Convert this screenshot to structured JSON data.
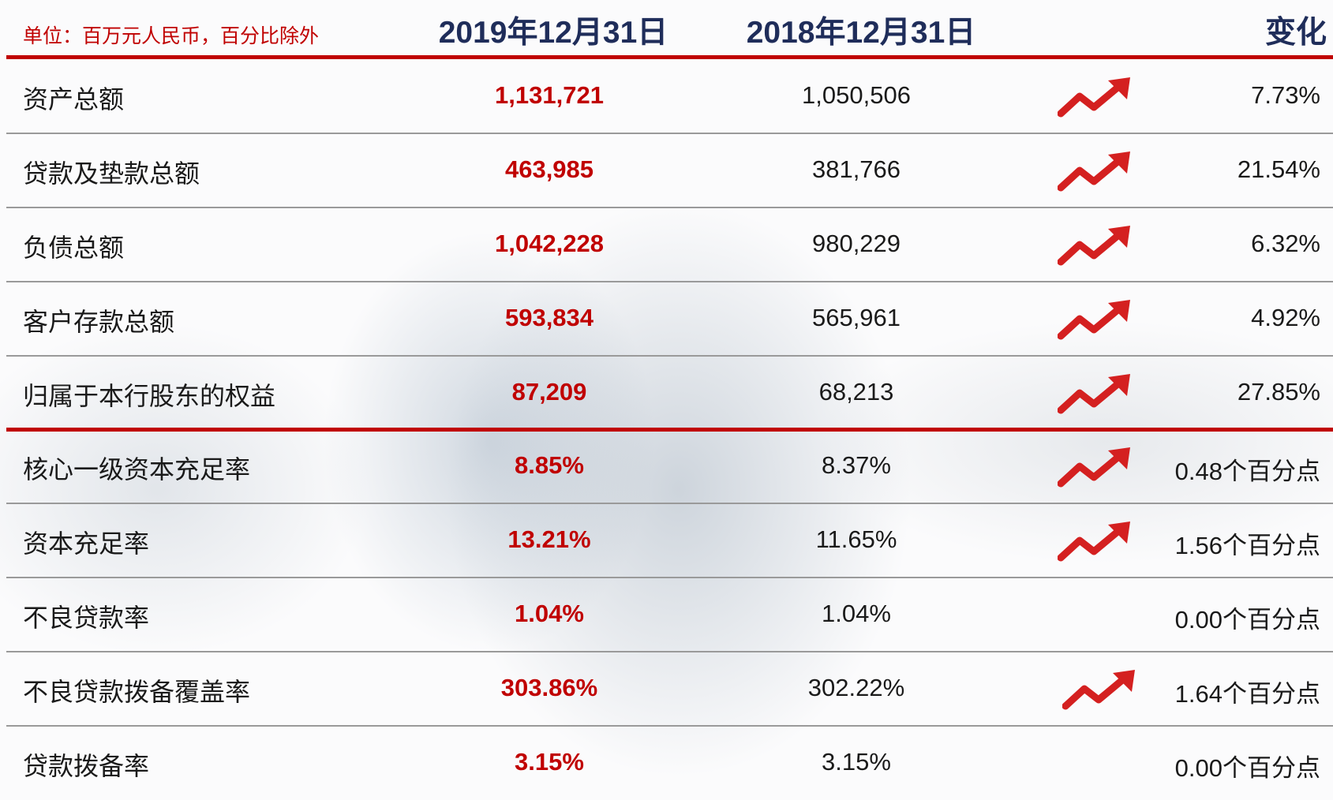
{
  "header": {
    "unit": "单位：百万元人民币，百分比除外",
    "columns": [
      "2019年12月31日",
      "2018年12月31日",
      "变化"
    ]
  },
  "table": {
    "rows": [
      {
        "label": "资产总额",
        "v2019": "1,131,721",
        "v2018": "1,050,506",
        "change": "7.73%",
        "arrow": true
      },
      {
        "label": "贷款及垫款总额",
        "v2019": "463,985",
        "v2018": "381,766",
        "change": "21.54%",
        "arrow": true
      },
      {
        "label": "负债总额",
        "v2019": "1,042,228",
        "v2018": "980,229",
        "change": "6.32%",
        "arrow": true
      },
      {
        "label": "客户存款总额",
        "v2019": "593,834",
        "v2018": "565,961",
        "change": "4.92%",
        "arrow": true
      },
      {
        "label": "归属于本行股东的权益",
        "v2019": "87,209",
        "v2018": "68,213",
        "change": "27.85%",
        "arrow": true
      },
      {
        "label": "核心一级资本充足率",
        "v2019": "8.85%",
        "v2018": "8.37%",
        "change": "0.48个百分点",
        "arrow": true
      },
      {
        "label": "资本充足率",
        "v2019": "13.21%",
        "v2018": "11.65%",
        "change": "1.56个百分点",
        "arrow": true
      },
      {
        "label": "不良贷款率",
        "v2019": "1.04%",
        "v2018": "1.04%",
        "change": "0.00个百分点",
        "arrow": false
      },
      {
        "label": "不良贷款拨备覆盖率",
        "v2019": "303.86%",
        "v2018": "302.22%",
        "change": "1.64个百分点",
        "arrow": true
      },
      {
        "label": "贷款拨备率",
        "v2019": "3.15%",
        "v2018": "3.15%",
        "change": "0.00个百分点",
        "arrow": false
      }
    ]
  }
}
